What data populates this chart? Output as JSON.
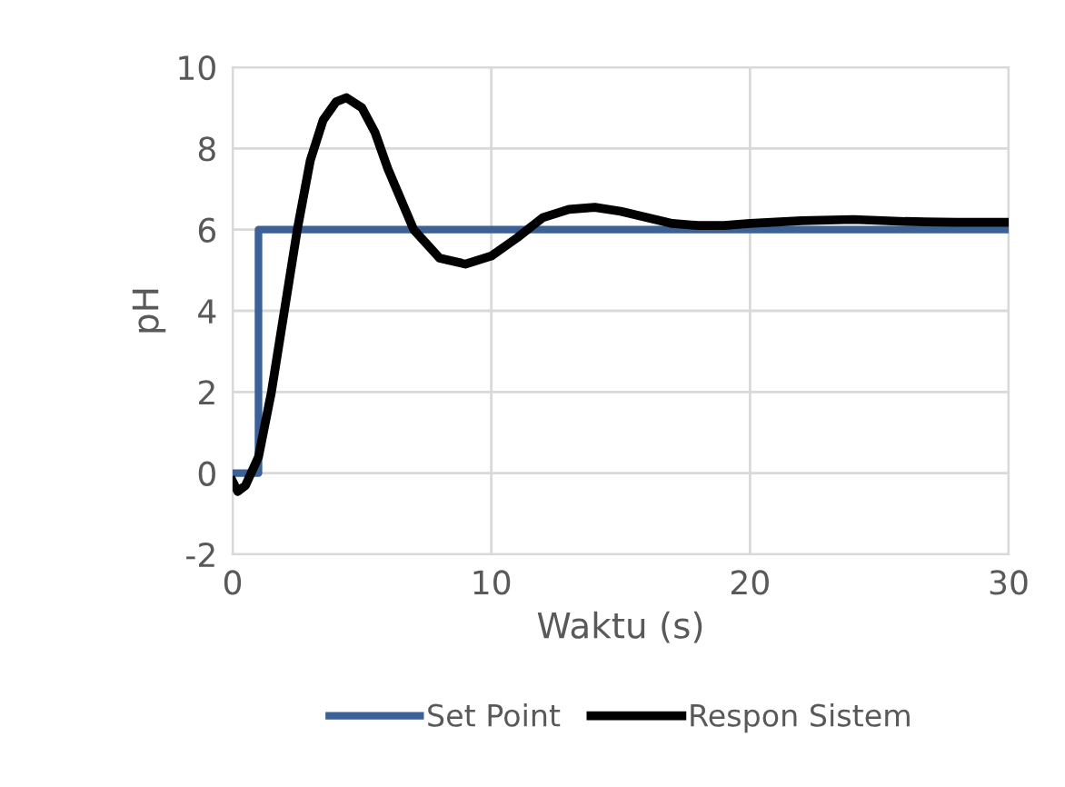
{
  "chart_data": {
    "type": "line",
    "xlabel": "Waktu (s)",
    "ylabel": "pH",
    "xlim": [
      0,
      30
    ],
    "xticks": [
      0,
      10,
      20,
      30
    ],
    "ylim": [
      -2,
      10
    ],
    "yticks": [
      -2,
      0,
      2,
      4,
      6,
      8,
      10
    ],
    "grid": true,
    "legend": "bottom",
    "marker": "none",
    "line_style": "solid",
    "series": [
      {
        "name": "Set Point",
        "color": "#3b6196",
        "x": [
          0,
          1,
          1,
          30
        ],
        "values": [
          0,
          0,
          6,
          6
        ]
      },
      {
        "name": "Respon Sistem",
        "color": "#000000",
        "x": [
          0,
          0.2,
          0.5,
          1,
          1.5,
          2,
          2.5,
          3,
          3.5,
          4,
          4.4,
          5,
          5.5,
          6,
          7,
          8,
          9,
          10,
          11,
          12,
          13,
          14,
          15,
          16,
          17,
          18,
          19,
          20,
          22,
          24,
          26,
          28,
          30
        ],
        "values": [
          -0.2,
          -0.45,
          -0.3,
          0.4,
          2,
          4,
          6,
          7.7,
          8.7,
          9.15,
          9.25,
          9.0,
          8.4,
          7.5,
          6.0,
          5.3,
          5.15,
          5.35,
          5.8,
          6.3,
          6.5,
          6.55,
          6.45,
          6.3,
          6.15,
          6.1,
          6.1,
          6.15,
          6.22,
          6.25,
          6.2,
          6.18,
          6.18
        ]
      }
    ]
  }
}
